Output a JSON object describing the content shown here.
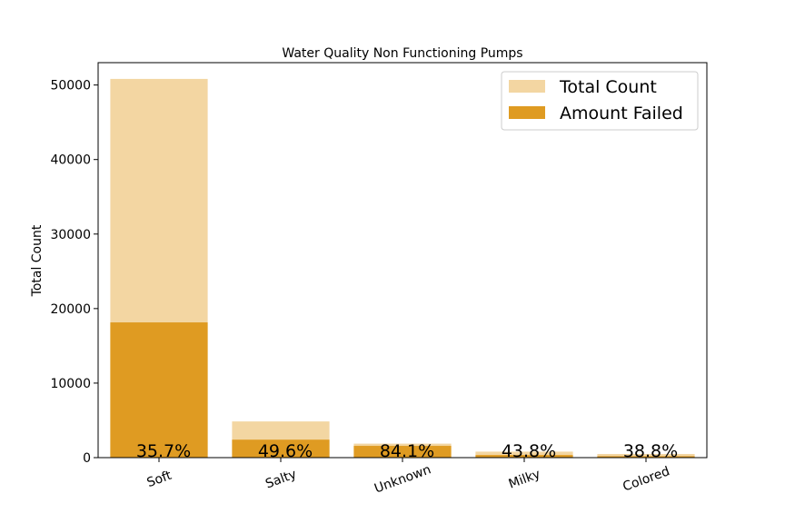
{
  "chart_data": {
    "type": "bar",
    "title": "Water Quality Non Functioning Pumps",
    "xlabel": "",
    "ylabel": "Total Count",
    "categories": [
      "Soft",
      "Salty",
      "Unknown",
      "Milky",
      "Colored"
    ],
    "series": [
      {
        "name": "Total Count",
        "values": [
          50818,
          4856,
          1876,
          804,
          490
        ],
        "color": "#f3d6a2"
      },
      {
        "name": "Amount Failed",
        "values": [
          18145,
          2409,
          1578,
          352,
          190
        ],
        "color": "#df9b22"
      }
    ],
    "percent_labels": [
      "35.7%",
      "49.6%",
      "84.1%",
      "43.8%",
      "38.8%"
    ],
    "ylim": [
      0,
      53000
    ],
    "yticks": [
      0,
      10000,
      20000,
      30000,
      40000,
      50000
    ],
    "grid": false,
    "legend_position": "top-right"
  }
}
